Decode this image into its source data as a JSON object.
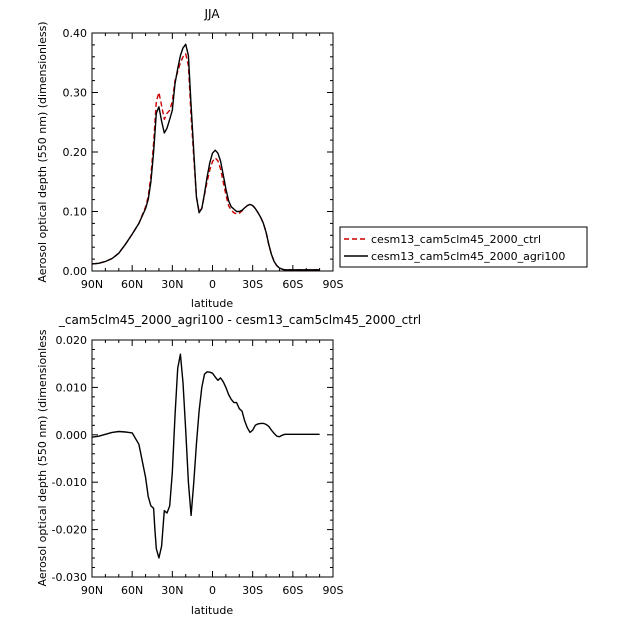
{
  "chart_data": [
    {
      "type": "line",
      "title": "JJA",
      "xlabel": "latitude",
      "ylabel": "Aerosol optical depth (550 nm) (dimensionless)",
      "ylim": [
        0.0,
        0.4
      ],
      "yticks": [
        "0.00",
        "0.10",
        "0.20",
        "0.30",
        "0.40"
      ],
      "xlim": [
        90,
        -90
      ],
      "xticks": [
        {
          "value": 90,
          "label": "90N"
        },
        {
          "value": 60,
          "label": "60N"
        },
        {
          "value": 30,
          "label": "30N"
        },
        {
          "value": 0,
          "label": "0"
        },
        {
          "value": -30,
          "label": "30S"
        },
        {
          "value": -60,
          "label": "60S"
        },
        {
          "value": -90,
          "label": "90S"
        }
      ],
      "legend_position": "right",
      "series": [
        {
          "name": "cesm13_cam5clm45_2000_ctrl",
          "color": "#cc0000",
          "dash": "dashed",
          "x": [
            90,
            85,
            80,
            75,
            70,
            65,
            60,
            55,
            50,
            48,
            46,
            44,
            42,
            40,
            38,
            36,
            34,
            32,
            30,
            28,
            26,
            24,
            22,
            20,
            18,
            16,
            14,
            12,
            10,
            8,
            6,
            4,
            2,
            0,
            -2,
            -4,
            -6,
            -8,
            -10,
            -12,
            -14,
            -16,
            -18,
            -20,
            -22,
            -24,
            -26,
            -28,
            -30,
            -32,
            -34,
            -36,
            -38,
            -40,
            -42,
            -44,
            -46,
            -48,
            -50,
            -52,
            -54,
            -56,
            -58,
            -60,
            -62,
            -64,
            -66,
            -68,
            -70,
            -72,
            -74,
            -76,
            -78,
            -80
          ],
          "y": [
            0.012,
            0.013,
            0.016,
            0.021,
            0.03,
            0.045,
            0.062,
            0.08,
            0.108,
            0.125,
            0.16,
            0.215,
            0.285,
            0.3,
            0.278,
            0.255,
            0.265,
            0.27,
            0.285,
            0.32,
            0.335,
            0.35,
            0.36,
            0.365,
            0.345,
            0.26,
            0.19,
            0.125,
            0.1,
            0.105,
            0.128,
            0.15,
            0.17,
            0.184,
            0.19,
            0.185,
            0.172,
            0.15,
            0.128,
            0.11,
            0.102,
            0.098,
            0.096,
            0.097,
            0.101,
            0.106,
            0.11,
            0.112,
            0.11,
            0.105,
            0.098,
            0.09,
            0.08,
            0.065,
            0.045,
            0.028,
            0.016,
            0.009,
            0.005,
            0.003,
            0.002,
            0.002,
            0.002,
            0.002,
            0.002,
            0.002,
            0.002,
            0.002,
            0.002,
            0.002,
            0.002,
            0.002,
            0.002,
            0.002
          ]
        },
        {
          "name": "cesm13_cam5clm45_2000_agri100",
          "color": "#000000",
          "dash": "solid",
          "x": [
            90,
            85,
            80,
            75,
            70,
            65,
            60,
            55,
            50,
            48,
            46,
            44,
            42,
            40,
            38,
            36,
            34,
            32,
            30,
            28,
            26,
            24,
            22,
            20,
            18,
            16,
            14,
            12,
            10,
            8,
            6,
            4,
            2,
            0,
            -2,
            -4,
            -6,
            -8,
            -10,
            -12,
            -14,
            -16,
            -18,
            -20,
            -22,
            -24,
            -26,
            -28,
            -30,
            -32,
            -34,
            -36,
            -38,
            -40,
            -42,
            -44,
            -46,
            -48,
            -50,
            -52,
            -54,
            -56,
            -58,
            -60,
            -62,
            -64,
            -66,
            -68,
            -70,
            -72,
            -74,
            -76,
            -78,
            -80
          ],
          "y": [
            0.012,
            0.013,
            0.016,
            0.021,
            0.03,
            0.045,
            0.062,
            0.08,
            0.105,
            0.12,
            0.15,
            0.2,
            0.265,
            0.276,
            0.252,
            0.232,
            0.24,
            0.255,
            0.27,
            0.315,
            0.34,
            0.362,
            0.375,
            0.381,
            0.362,
            0.278,
            0.2,
            0.125,
            0.098,
            0.105,
            0.13,
            0.158,
            0.182,
            0.198,
            0.203,
            0.198,
            0.185,
            0.162,
            0.138,
            0.118,
            0.108,
            0.104,
            0.1,
            0.1,
            0.102,
            0.106,
            0.11,
            0.112,
            0.11,
            0.105,
            0.098,
            0.09,
            0.08,
            0.065,
            0.045,
            0.028,
            0.016,
            0.009,
            0.005,
            0.003,
            0.002,
            0.002,
            0.002,
            0.002,
            0.002,
            0.002,
            0.002,
            0.002,
            0.002,
            0.002,
            0.002,
            0.002,
            0.002,
            0.002
          ]
        }
      ]
    },
    {
      "type": "line",
      "title": "_cam5clm45_2000_agri100 - cesm13_cam5clm45_2000_ctrl",
      "xlabel": "latitude",
      "ylabel": "Aerosol optical depth (550 nm) (dimensionless",
      "ylim": [
        -0.03,
        0.02
      ],
      "yticks": [
        "-0.030",
        "-0.020",
        "-0.010",
        "0.000",
        "0.010",
        "0.020"
      ],
      "xlim": [
        90,
        -90
      ],
      "xticks": [
        {
          "value": 90,
          "label": "90N"
        },
        {
          "value": 60,
          "label": "60N"
        },
        {
          "value": 30,
          "label": "30N"
        },
        {
          "value": 0,
          "label": "0"
        },
        {
          "value": -30,
          "label": "30S"
        },
        {
          "value": -60,
          "label": "60S"
        },
        {
          "value": -90,
          "label": "90S"
        }
      ],
      "series": [
        {
          "color": "#000000",
          "dash": "solid",
          "x": [
            90,
            85,
            80,
            75,
            70,
            65,
            60,
            55,
            50,
            48,
            46,
            44,
            43,
            42,
            40,
            38,
            36,
            34,
            32,
            30,
            28,
            26,
            24,
            22,
            20,
            18,
            16,
            14,
            12,
            10,
            8,
            6,
            4,
            2,
            0,
            -2,
            -4,
            -6,
            -8,
            -10,
            -12,
            -14,
            -16,
            -18,
            -20,
            -22,
            -24,
            -26,
            -28,
            -30,
            -32,
            -34,
            -36,
            -38,
            -40,
            -42,
            -44,
            -46,
            -48,
            -50,
            -52,
            -54,
            -56,
            -58,
            -60,
            -62,
            -64,
            -66,
            -68,
            -70,
            -72,
            -74,
            -76,
            -78,
            -80
          ],
          "y": [
            -0.0005,
            -0.0003,
            0.0001,
            0.0005,
            0.0007,
            0.0006,
            0.0004,
            -0.002,
            -0.009,
            -0.013,
            -0.015,
            -0.0155,
            -0.02,
            -0.024,
            -0.026,
            -0.0235,
            -0.016,
            -0.0165,
            -0.015,
            -0.008,
            0.004,
            0.014,
            0.017,
            0.011,
            0.001,
            -0.01,
            -0.017,
            -0.01,
            -0.002,
            0.005,
            0.01,
            0.0128,
            0.0133,
            0.0132,
            0.013,
            0.0122,
            0.0115,
            0.012,
            0.0112,
            0.01,
            0.0085,
            0.0075,
            0.0068,
            0.0068,
            0.0055,
            0.005,
            0.003,
            0.0015,
            0.0005,
            0.001,
            0.002,
            0.0023,
            0.0024,
            0.0024,
            0.0022,
            0.0018,
            0.001,
            0.0003,
            -0.0003,
            -0.0004,
            -0.0001,
            0.0001,
            0.0001,
            0.0001,
            0.0001,
            0.0001,
            0.0001,
            0.0001,
            0.0001,
            0.0001,
            0.0001,
            0.0001,
            0.0001,
            0.0001,
            0.0001
          ]
        }
      ]
    }
  ]
}
